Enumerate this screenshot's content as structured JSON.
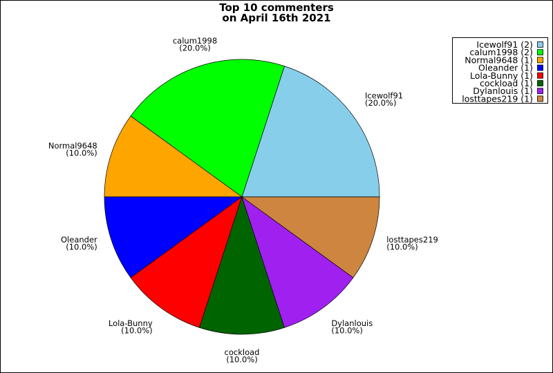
{
  "chart_data": {
    "type": "pie",
    "title": [
      "Top 10 commenters",
      "on April 16th 2021"
    ],
    "start_angle_deg": 0,
    "direction": "counterclockwise",
    "legend_position": "top-right",
    "slices": [
      {
        "label": "Icewolf91",
        "value": 2,
        "percent": "(20.0%)",
        "legend": "Icewolf91 (2)",
        "color": "#87ceeb"
      },
      {
        "label": "calum1998",
        "value": 2,
        "percent": "(20.0%)",
        "legend": "calum1998 (2)",
        "color": "#00ff00"
      },
      {
        "label": "Normal9648",
        "value": 1,
        "percent": "(10.0%)",
        "legend": "Normal9648 (1)",
        "color": "#ffa500"
      },
      {
        "label": "Oleander",
        "value": 1,
        "percent": "(10.0%)",
        "legend": "Oleander (1)",
        "color": "#0000ff"
      },
      {
        "label": "Lola-Bunny",
        "value": 1,
        "percent": "(10.0%)",
        "legend": "Lola-Bunny (1)",
        "color": "#ff0000"
      },
      {
        "label": "cockload",
        "value": 1,
        "percent": "(10.0%)",
        "legend": "cockload (1)",
        "color": "#006400"
      },
      {
        "label": "Dylanlouis",
        "value": 1,
        "percent": "(10.0%)",
        "legend": "Dylanlouis (1)",
        "color": "#a020f0"
      },
      {
        "label": "losttapes219",
        "value": 1,
        "percent": "(10.0%)",
        "legend": "losttapes219 (1)",
        "color": "#cd853f"
      }
    ]
  }
}
